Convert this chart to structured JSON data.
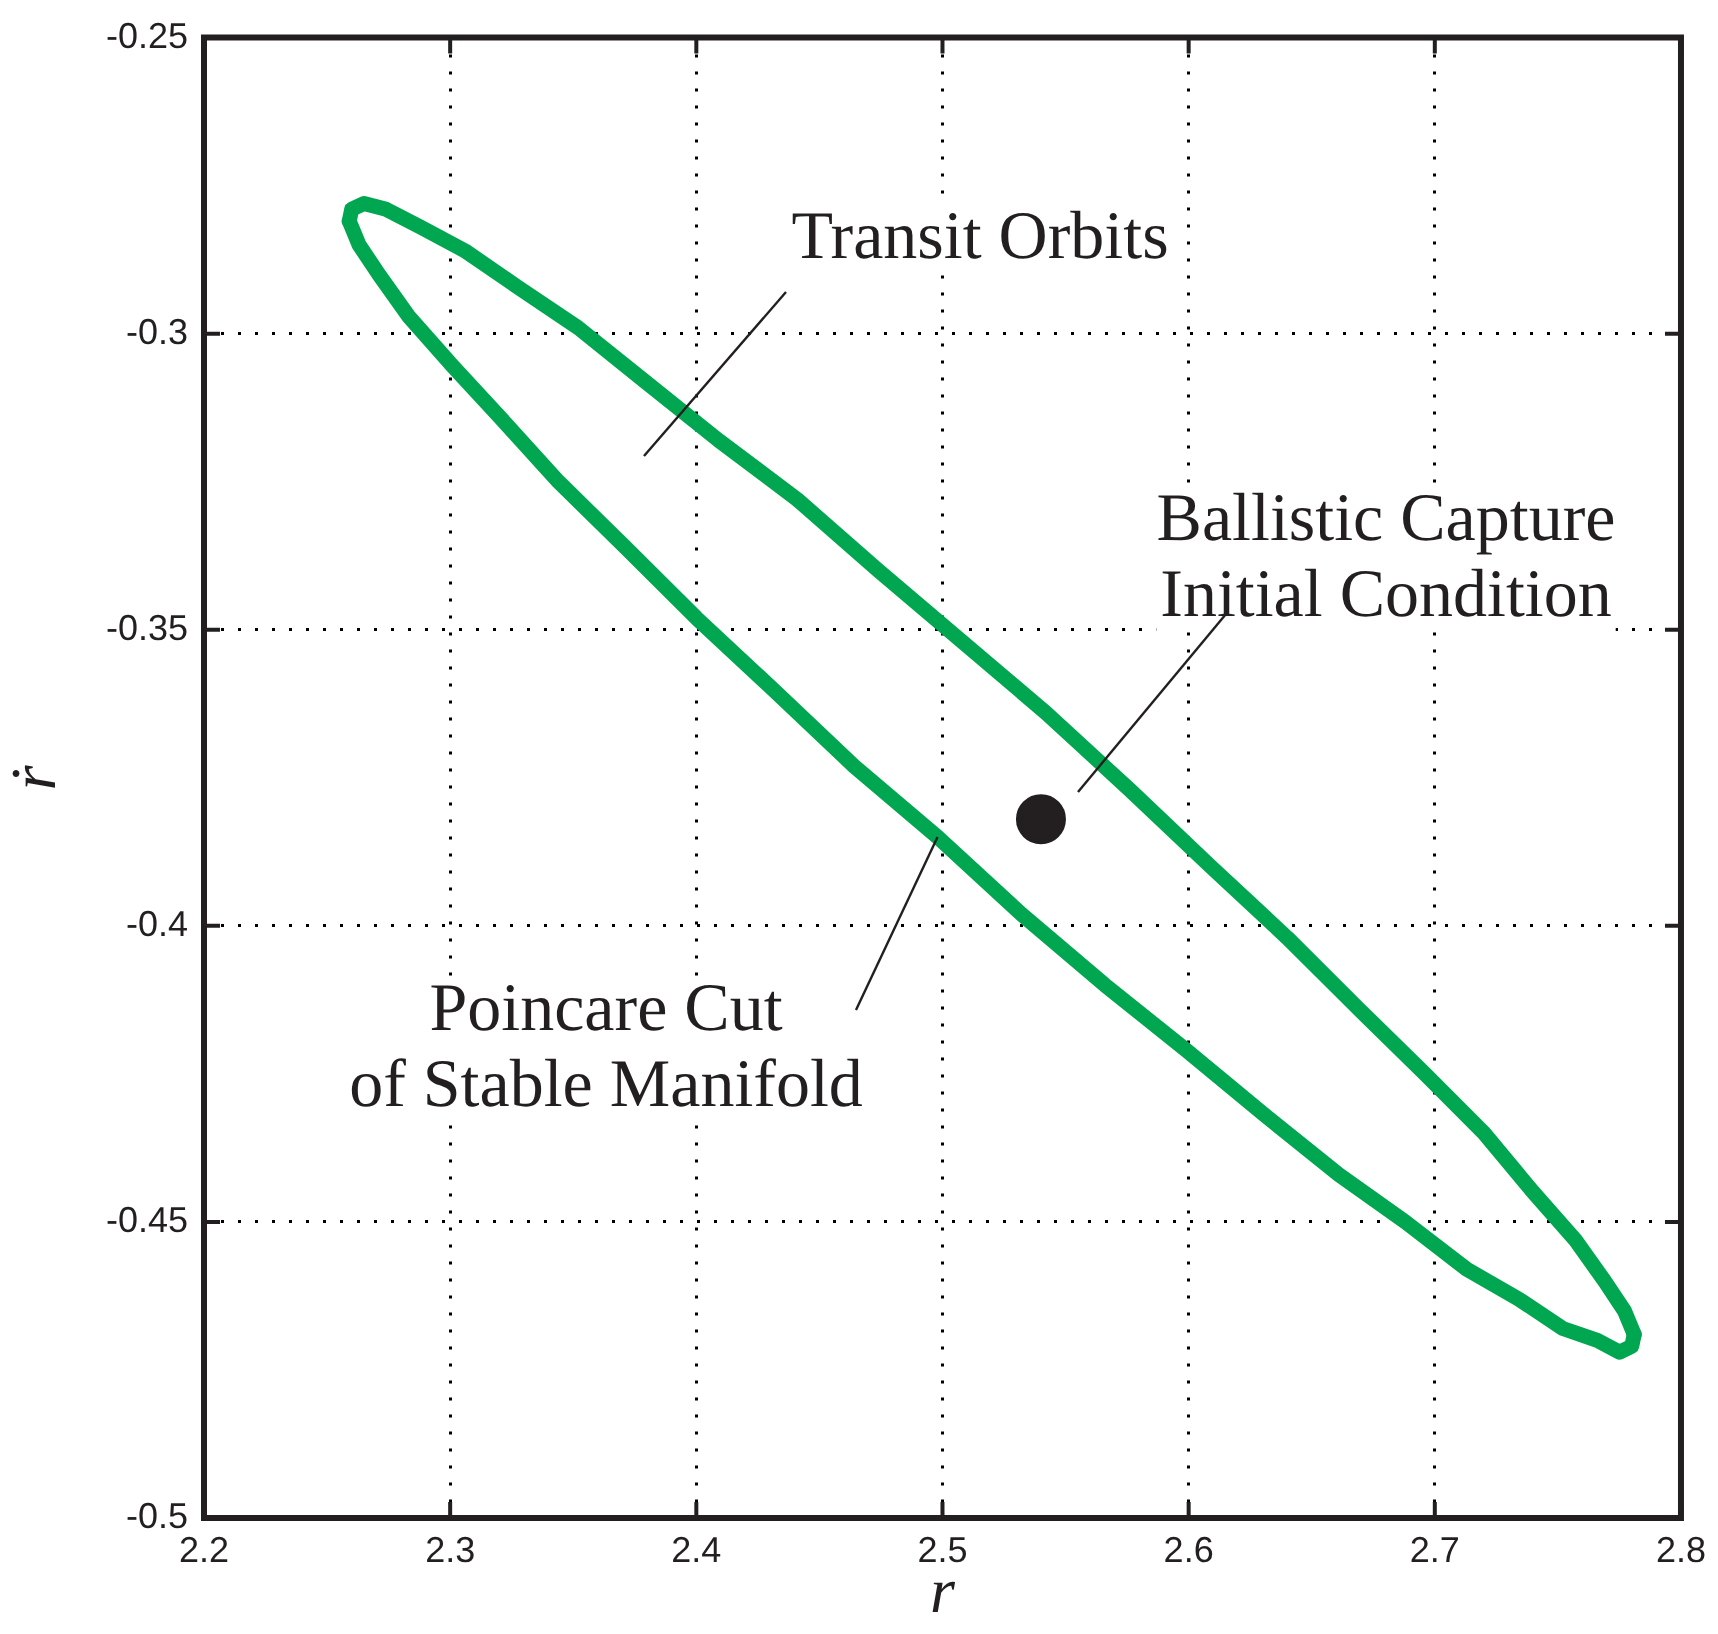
{
  "chart_data": {
    "type": "line",
    "xlabel": "r",
    "ylabel": "ṙ",
    "xlim": [
      2.2,
      2.8
    ],
    "ylim": [
      -0.5,
      -0.25
    ],
    "xticks": [
      2.2,
      2.3,
      2.4,
      2.5,
      2.6,
      2.7,
      2.8
    ],
    "yticks": [
      -0.5,
      -0.45,
      -0.4,
      -0.35,
      -0.3,
      -0.25
    ],
    "grid": true,
    "line_style": "solid",
    "series": [
      {
        "type": "line",
        "marker": "none",
        "color": "#00a650",
        "x": [
          2.259,
          2.26,
          2.265,
          2.274,
          2.288,
          2.306,
          2.327,
          2.352,
          2.379,
          2.409,
          2.441,
          2.474,
          2.508,
          2.542,
          2.576,
          2.609,
          2.64,
          2.669,
          2.696,
          2.72,
          2.74,
          2.757,
          2.769,
          2.777,
          2.781
        ],
        "values": [
          -0.281,
          -0.279,
          -0.278,
          -0.279,
          -0.282,
          -0.286,
          -0.292,
          -0.299,
          -0.308,
          -0.318,
          -0.328,
          -0.34,
          -0.352,
          -0.364,
          -0.377,
          -0.39,
          -0.402,
          -0.414,
          -0.425,
          -0.435,
          -0.445,
          -0.453,
          -0.46,
          -0.465,
          -0.469
        ]
      },
      {
        "type": "line",
        "marker": "none",
        "color": "#00a650",
        "x": [
          2.259,
          2.263,
          2.271,
          2.283,
          2.3,
          2.32,
          2.344,
          2.371,
          2.4,
          2.431,
          2.464,
          2.498,
          2.532,
          2.566,
          2.599,
          2.631,
          2.661,
          2.688,
          2.713,
          2.734,
          2.752,
          2.766,
          2.775,
          2.78,
          2.781
        ],
        "values": [
          -0.281,
          -0.285,
          -0.29,
          -0.297,
          -0.305,
          -0.314,
          -0.325,
          -0.336,
          -0.348,
          -0.36,
          -0.373,
          -0.385,
          -0.398,
          -0.41,
          -0.421,
          -0.432,
          -0.442,
          -0.45,
          -0.458,
          -0.463,
          -0.468,
          -0.47,
          -0.472,
          -0.471,
          -0.469
        ]
      },
      {
        "type": "scatter",
        "marker": "circle",
        "color": "#231f20",
        "x": [
          2.54
        ],
        "values": [
          -0.382
        ]
      }
    ],
    "annotations": [
      "Transit Orbits",
      "Ballistic Capture\nInitial Condition",
      {
        "text": "Poincare Cut\nof Stable Manifold",
        "x": 2.498,
        "y": -0.385
      }
    ]
  }
}
